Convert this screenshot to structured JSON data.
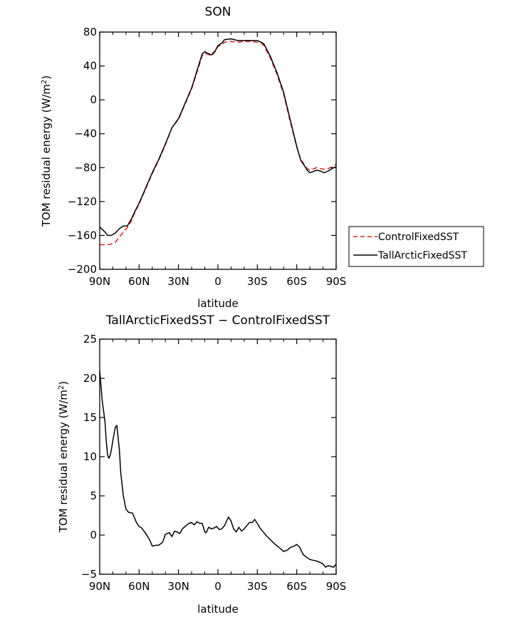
{
  "chart_data": [
    {
      "type": "line",
      "title": "SON",
      "xlabel": "latitude",
      "ylabel_main": "TOM residual energy (W/m",
      "ylabel_sup": "2",
      "ylabel_close": ")",
      "xlim": [
        90,
        -90
      ],
      "ylim": [
        -200,
        80
      ],
      "xticks": [
        90,
        60,
        30,
        0,
        -30,
        -60,
        -90
      ],
      "xtick_labels": [
        "90N",
        "60N",
        "30N",
        "0",
        "30S",
        "60S",
        "90S"
      ],
      "yticks": [
        80,
        40,
        0,
        -40,
        -80,
        -120,
        -160,
        -200
      ],
      "ytick_labels": [
        "80",
        "40",
        "0",
        "−40",
        "−80",
        "−120",
        "−160",
        "−200"
      ],
      "legend": [
        "ControlFixedSST",
        "TallArcticFixedSST"
      ],
      "series": [
        {
          "name": "ControlFixedSST",
          "color": "#e02020",
          "dash": "dashed",
          "x": [
            90,
            87,
            84,
            81,
            78,
            75,
            72,
            69,
            66,
            63,
            60,
            55,
            50,
            45,
            40,
            35,
            30,
            25,
            20,
            15,
            12,
            10,
            8,
            5,
            2,
            0,
            -3,
            -5,
            -10,
            -15,
            -20,
            -25,
            -30,
            -33,
            -35,
            -40,
            -45,
            -50,
            -55,
            -60,
            -63,
            -66,
            -68,
            -70,
            -72,
            -75,
            -78,
            -81,
            -84,
            -87,
            -90
          ],
          "values": [
            -171,
            -171,
            -171,
            -170,
            -168,
            -162,
            -156,
            -151,
            -143,
            -132,
            -123,
            -105,
            -87,
            -71,
            -53,
            -33,
            -23,
            -5,
            13,
            37,
            52,
            55,
            54,
            52,
            57,
            63,
            65,
            68,
            69,
            68,
            69,
            69,
            68,
            67,
            64,
            49,
            30,
            7,
            -25,
            -56,
            -70,
            -77,
            -81,
            -83,
            -82,
            -80,
            -81,
            -82,
            -81,
            -79,
            -76
          ]
        },
        {
          "name": "TallArcticFixedSST",
          "color": "#000000",
          "dash": "solid",
          "x": [
            90,
            88,
            86,
            84,
            81,
            78,
            75,
            72,
            69,
            66,
            63,
            60,
            55,
            50,
            45,
            40,
            35,
            30,
            25,
            20,
            15,
            12,
            10,
            8,
            5,
            2,
            0,
            -3,
            -5,
            -10,
            -15,
            -20,
            -25,
            -30,
            -33,
            -35,
            -40,
            -45,
            -50,
            -55,
            -60,
            -63,
            -66,
            -68,
            -70,
            -72,
            -75,
            -78,
            -81,
            -84,
            -87,
            -90
          ],
          "values": [
            -150,
            -153,
            -156,
            -160,
            -160,
            -157,
            -152,
            -149,
            -149,
            -141,
            -131,
            -122,
            -104,
            -86,
            -70,
            -52,
            -33,
            -22,
            -4,
            14,
            39,
            54,
            57,
            55,
            53,
            58,
            64,
            67,
            71,
            72,
            70,
            70,
            70,
            70,
            68,
            66,
            51,
            32,
            9,
            -23,
            -55,
            -71,
            -78,
            -83,
            -86,
            -85,
            -83,
            -84,
            -86,
            -84,
            -81,
            -79
          ]
        }
      ]
    },
    {
      "type": "line",
      "title": "TallArcticFixedSST − ControlFixedSST",
      "xlabel": "latitude",
      "ylabel_main": "TOM residual energy (W/m",
      "ylabel_sup": "2",
      "ylabel_close": ")",
      "xlim": [
        90,
        -90
      ],
      "ylim": [
        -5,
        25
      ],
      "xticks": [
        90,
        60,
        30,
        0,
        -30,
        -60,
        -90
      ],
      "xtick_labels": [
        "90N",
        "60N",
        "30N",
        "0",
        "30S",
        "60S",
        "90S"
      ],
      "yticks": [
        25,
        20,
        15,
        10,
        5,
        0,
        -5
      ],
      "ytick_labels": [
        "25",
        "20",
        "15",
        "10",
        "5",
        "0",
        "−5"
      ],
      "series": [
        {
          "name": "TallArcticFixedSST − ControlFixedSST",
          "color": "#000000",
          "dash": "solid",
          "x": [
            90,
            88,
            86,
            85,
            84,
            83,
            82,
            81,
            80,
            79,
            78,
            77,
            76,
            75,
            74,
            72,
            70,
            68,
            65,
            62,
            60,
            58,
            55,
            52,
            50,
            47,
            45,
            42,
            40,
            37,
            35,
            33,
            31,
            29,
            27,
            25,
            22,
            20,
            18,
            16,
            14,
            12,
            10,
            9,
            7,
            5,
            3,
            1,
            -1,
            -3,
            -5,
            -8,
            -10,
            -12,
            -14,
            -16,
            -18,
            -20,
            -22,
            -24,
            -26,
            -28,
            -30,
            -32,
            -35,
            -37,
            -40,
            -43,
            -46,
            -50,
            -53,
            -55,
            -58,
            -60,
            -62,
            -65,
            -68,
            -70,
            -72,
            -75,
            -78,
            -80,
            -82,
            -84,
            -86,
            -88,
            -90
          ],
          "values": [
            21,
            17,
            14.5,
            12,
            10.2,
            9.8,
            10.2,
            11,
            12,
            13,
            13.8,
            14,
            12.5,
            10.8,
            8,
            5,
            3.3,
            2.9,
            2.8,
            1.6,
            1.1,
            0.9,
            0.2,
            -0.6,
            -1.4,
            -1.3,
            -1.3,
            -0.9,
            0.1,
            0.3,
            -0.2,
            0.5,
            0.4,
            0.2,
            0.8,
            1.1,
            1.5,
            1.6,
            1.3,
            1.7,
            1.5,
            1.5,
            0.4,
            0.3,
            1.0,
            0.8,
            0.9,
            1.1,
            0.7,
            0.8,
            1.2,
            2.3,
            1.8,
            0.8,
            0.4,
            1.0,
            0.5,
            0.8,
            1.2,
            1.6,
            1.6,
            2.0,
            1.5,
            0.9,
            0.3,
            -0.1,
            -0.6,
            -1.1,
            -1.5,
            -2.1,
            -1.9,
            -1.6,
            -1.4,
            -1.2,
            -1.5,
            -2.5,
            -2.9,
            -3.1,
            -3.2,
            -3.3,
            -3.5,
            -3.7,
            -4.1,
            -3.9,
            -4.0,
            -4.1,
            -3.7
          ]
        }
      ]
    }
  ]
}
